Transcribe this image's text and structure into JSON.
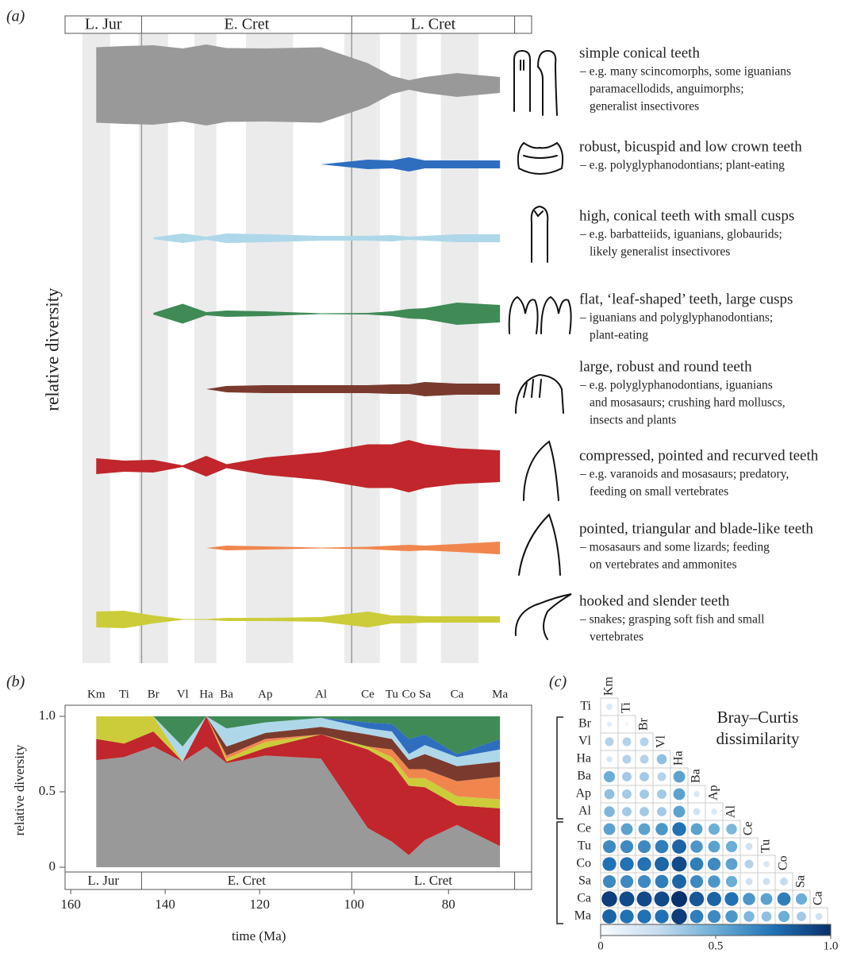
{
  "chart_data": [
    {
      "type": "spindle",
      "panel_label": "(a)",
      "ylabel": "relative diversity",
      "periods": [
        {
          "name": "L. Jur",
          "from": 161.2,
          "to": 145
        },
        {
          "name": "E. Cret",
          "from": 145,
          "to": 100.5
        },
        {
          "name": "L. Cret",
          "from": 100.5,
          "to": 66
        }
      ],
      "series": [
        {
          "name": "simple conical teeth",
          "color": "#999999",
          "description": [
            "– e.g. many scincomorphs, some iguanians",
            "paramacellodids, anguimorphs;",
            "generalist insectivores"
          ],
          "values": [
            0.95,
            0.98,
            1.0,
            0.92,
            1.02,
            0.93,
            0.92,
            0.95,
            0.55,
            0.23,
            0.12,
            0.2,
            0.3,
            0.2
          ]
        },
        {
          "name": "robust, bicuspid and low crown teeth",
          "color": "#2f6ebf",
          "description": [
            "– e.g. polyglyphanodontians; plant-eating"
          ],
          "values": [
            null,
            null,
            null,
            null,
            null,
            null,
            null,
            0,
            0.12,
            0.1,
            0.18,
            0.1,
            0.1,
            0.1
          ]
        },
        {
          "name": "high, conical teeth with small cusps",
          "color": "#aed8ea",
          "description": [
            "– e.g. barbatteiids, iguanians, globaurids;",
            "likely generalist insectivores"
          ],
          "values": [
            null,
            null,
            0.02,
            0.12,
            0.04,
            0.12,
            0.1,
            0.06,
            0.06,
            0.08,
            0.04,
            0.06,
            0.1,
            0.1
          ]
        },
        {
          "name": "flat, ‘leaf-shaped’ teeth, large cusps",
          "color": "#3f8a55",
          "description": [
            "– iguanians and polyglyphanodontians;",
            "plant-eating"
          ],
          "values": [
            null,
            null,
            0.02,
            0.25,
            0.04,
            0.08,
            0.06,
            0.01,
            0.02,
            0.06,
            0.12,
            0.14,
            0.28,
            0.22
          ]
        },
        {
          "name": "large, robust and round teeth",
          "color": "#7a3b2e",
          "description": [
            "– e.g. polyglyphanodontians, iguanians",
            "and mosasaurs; crushing hard molluscs,",
            "insects and plants"
          ],
          "values": [
            null,
            null,
            null,
            null,
            0,
            0.08,
            0.1,
            0.1,
            0.1,
            0.12,
            0.12,
            0.18,
            0.14,
            0.14
          ]
        },
        {
          "name": "compressed, pointed and recurved teeth",
          "color": "#c0262b",
          "description": [
            "– e.g. varanoids and mosasaurs; predatory,",
            "feeding on small vertebrates"
          ],
          "values": [
            0.2,
            0.14,
            0.16,
            0.02,
            0.26,
            0.05,
            0.22,
            0.35,
            0.55,
            0.55,
            0.66,
            0.55,
            0.45,
            0.4
          ]
        },
        {
          "name": "pointed, triangular and blade-like teeth",
          "color": "#f0864e",
          "description": [
            "– mosasaurs and some lizards; feeding",
            "on vertebrates and ammonites"
          ],
          "values": [
            null,
            null,
            null,
            null,
            0,
            0.06,
            0.04,
            0.01,
            0.03,
            0.06,
            0.08,
            0.06,
            0.1,
            0.16
          ]
        },
        {
          "name": "hooked and slender teeth",
          "color": "#cccc3a",
          "description": [
            "– snakes; grasping soft fish and small",
            "vertebrates"
          ],
          "values": [
            0.2,
            0.22,
            0.1,
            0.01,
            0.01,
            0.04,
            0.04,
            0.06,
            0.2,
            0.1,
            0.1,
            0.08,
            0.08,
            0.08
          ]
        }
      ]
    },
    {
      "type": "stacked_area",
      "panel_label": "(b)",
      "xlabel": "time (Ma)",
      "ylabel": "relative diversity",
      "stage_labels": [
        "Km",
        "Ti",
        "Br",
        "Vl",
        "Ha",
        "Ba",
        "Ap",
        "Al",
        "Ce",
        "Tu",
        "Co",
        "Sa",
        "Ca",
        "Ma"
      ],
      "x": [
        154.6,
        148.7,
        142.5,
        136.3,
        131.3,
        127,
        118.8,
        107,
        97.1,
        92,
        88.4,
        85,
        78.2,
        69.1
      ],
      "xlim": [
        161.2,
        62.4
      ],
      "xticks": [
        160,
        140,
        120,
        100,
        80
      ],
      "ylim": [
        0,
        1
      ],
      "yticks": [
        0,
        0.5,
        {
          "value": 1,
          "label": "1.0"
        }
      ],
      "periods": [
        {
          "name": "L. Jur",
          "from": 161.2,
          "to": 145
        },
        {
          "name": "E. Cret",
          "from": 145,
          "to": 100.5
        },
        {
          "name": "L. Cret",
          "from": 100.5,
          "to": 66
        }
      ],
      "series": [
        {
          "color": "#999999",
          "values": [
            0.71,
            0.73,
            0.8,
            0.7,
            0.8,
            0.69,
            0.74,
            0.72,
            0.26,
            0.17,
            0.08,
            0.18,
            0.28,
            0.14
          ]
        },
        {
          "color": "#c0262b",
          "values": [
            0.14,
            0.09,
            0.1,
            0,
            0.2,
            0.01,
            0.05,
            0.16,
            0.52,
            0.52,
            0.46,
            0.35,
            0.13,
            0.25
          ]
        },
        {
          "color": "#cccc3a",
          "values": [
            0.15,
            0.18,
            0.1,
            0,
            0,
            0.02,
            0.04,
            0,
            0.02,
            0.04,
            0.05,
            0.06,
            0.06,
            0.06
          ]
        },
        {
          "color": "#f0864e",
          "values": [
            0,
            0,
            0,
            0,
            0,
            0.02,
            0.02,
            0,
            0,
            0.05,
            0.06,
            0.06,
            0.1,
            0.15
          ]
        },
        {
          "color": "#7a3b2e",
          "values": [
            0,
            0,
            0,
            0,
            0,
            0.06,
            0.04,
            0.05,
            0.08,
            0.07,
            0.06,
            0.1,
            0.1,
            0.1
          ]
        },
        {
          "color": "#aed8ea",
          "values": [
            0,
            0,
            0,
            0.1,
            0,
            0.12,
            0.07,
            0.06,
            0.04,
            0.05,
            0.04,
            0.06,
            0.06,
            0.08
          ]
        },
        {
          "color": "#2f6ebf",
          "values": [
            0,
            0,
            0,
            0,
            0,
            0,
            0,
            0,
            0.04,
            0.05,
            0.1,
            0.07,
            0.02,
            0.07
          ]
        },
        {
          "color": "#3f8a55",
          "values": [
            0,
            0,
            0,
            0.2,
            0,
            0.08,
            0.04,
            0.01,
            0.04,
            0.05,
            0.15,
            0.12,
            0.25,
            0.15
          ]
        }
      ]
    },
    {
      "type": "matrix",
      "panel_label": "(c)",
      "title": [
        "Bray–Curtis",
        "dissimilarity"
      ],
      "row_labels": [
        "Ti",
        "Br",
        "Vl",
        "Ha",
        "Ba",
        "Ap",
        "Al",
        "Ce",
        "Tu",
        "Co",
        "Sa",
        "Ca",
        "Ma"
      ],
      "col_labels": [
        "Km",
        "Ti",
        "Br",
        "Vl",
        "Ha",
        "Ba",
        "Ap",
        "Al",
        "Ce",
        "Tu",
        "Co",
        "Sa",
        "Ca"
      ],
      "values": [
        [
          0.15
        ],
        [
          0.1,
          0.05
        ],
        [
          0.3,
          0.3,
          0.3
        ],
        [
          0.15,
          0.3,
          0.3,
          0.4
        ],
        [
          0.5,
          0.35,
          0.35,
          0.3,
          0.55
        ],
        [
          0.4,
          0.35,
          0.35,
          0.35,
          0.55,
          0.15
        ],
        [
          0.45,
          0.35,
          0.35,
          0.35,
          0.55,
          0.2,
          0.15
        ],
        [
          0.55,
          0.55,
          0.55,
          0.6,
          0.75,
          0.55,
          0.5,
          0.45
        ],
        [
          0.65,
          0.65,
          0.65,
          0.7,
          0.8,
          0.6,
          0.55,
          0.5,
          0.2
        ],
        [
          0.75,
          0.75,
          0.75,
          0.8,
          0.9,
          0.7,
          0.65,
          0.55,
          0.3,
          0.15
        ],
        [
          0.65,
          0.65,
          0.65,
          0.7,
          0.8,
          0.65,
          0.6,
          0.5,
          0.2,
          0.2,
          0.25
        ],
        [
          0.95,
          0.9,
          0.9,
          0.9,
          1.0,
          0.85,
          0.8,
          0.75,
          0.6,
          0.55,
          0.7,
          0.5
        ],
        [
          0.8,
          0.75,
          0.75,
          0.75,
          0.95,
          0.7,
          0.65,
          0.6,
          0.45,
          0.4,
          0.5,
          0.35,
          0.2
        ]
      ],
      "colorbar": {
        "lim": [
          0,
          1
        ],
        "ticks": [
          0,
          0.5,
          {
            "value": 1,
            "label": "1.0"
          }
        ]
      }
    }
  ]
}
